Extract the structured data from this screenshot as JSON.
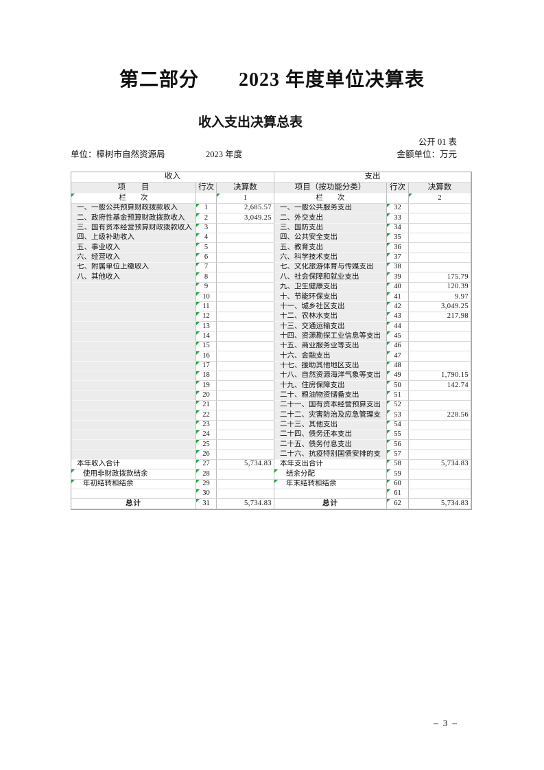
{
  "page": {
    "title": "第二部分　　2023 年度单位决算表",
    "subtitle": "收入支出决算总表",
    "table_code": "公开 01 表",
    "unit_label": "单位：樟树市自然资源局",
    "year_label": "2023 年度",
    "amount_unit_label": "金额单位：万元",
    "page_number": "– 3 –"
  },
  "colors": {
    "error_triangle_green": "#21a244",
    "shaded_cell_gray": "#ececec"
  },
  "table": {
    "income_title": "收入",
    "expense_title": "支出",
    "income_cols": {
      "item": "项　　目",
      "row_no": "行次",
      "amount": "决算数"
    },
    "expense_cols": {
      "item": "项目（按功能分类）",
      "row_no": "行次",
      "amount": "决算数"
    },
    "column_row_label": "栏　　次",
    "income_col_index": "1",
    "expense_col_index": "2",
    "rows": [
      {
        "li": "一、一般公共预算财政拨款收入",
        "ln": "1",
        "lv": "2,685.57",
        "ri": "一、一般公共服务支出",
        "rn": "32",
        "rv": ""
      },
      {
        "li": "二、政府性基金预算财政拨款收入",
        "ln": "2",
        "lv": "3,049.25",
        "ri": "二、外交支出",
        "rn": "33",
        "rv": ""
      },
      {
        "li": "三、国有资本经营预算财政拨款收入",
        "ln": "3",
        "lv": "",
        "ri": "三、国防支出",
        "rn": "34",
        "rv": ""
      },
      {
        "li": "四、上级补助收入",
        "ln": "4",
        "lv": "",
        "ri": "四、公共安全支出",
        "rn": "35",
        "rv": ""
      },
      {
        "li": "五、事业收入",
        "ln": "5",
        "lv": "",
        "ri": "五、教育支出",
        "rn": "36",
        "rv": ""
      },
      {
        "li": "六、经营收入",
        "ln": "6",
        "lv": "",
        "ri": "六、科学技术支出",
        "rn": "37",
        "rv": ""
      },
      {
        "li": "七、附属单位上缴收入",
        "ln": "7",
        "lv": "",
        "ri": "七、文化旅游体育与传媒支出",
        "rn": "38",
        "rv": ""
      },
      {
        "li": "八、其他收入",
        "ln": "8",
        "lv": "",
        "ri": "八、社会保障和就业支出",
        "rn": "39",
        "rv": "175.79"
      },
      {
        "li": "",
        "ln": "9",
        "lv": "",
        "ri": "九、卫生健康支出",
        "rn": "40",
        "rv": "120.39"
      },
      {
        "li": "",
        "ln": "10",
        "lv": "",
        "ri": "十、节能环保支出",
        "rn": "41",
        "rv": "9.97"
      },
      {
        "li": "",
        "ln": "11",
        "lv": "",
        "ri": "十一、城乡社区支出",
        "rn": "42",
        "rv": "3,049.25"
      },
      {
        "li": "",
        "ln": "12",
        "lv": "",
        "ri": "十二、农林水支出",
        "rn": "43",
        "rv": "217.98"
      },
      {
        "li": "",
        "ln": "13",
        "lv": "",
        "ri": "十三、交通运输支出",
        "rn": "44",
        "rv": ""
      },
      {
        "li": "",
        "ln": "14",
        "lv": "",
        "ri": "十四、资源勘探工业信息等支出",
        "rn": "45",
        "rv": ""
      },
      {
        "li": "",
        "ln": "15",
        "lv": "",
        "ri": "十五、商业服务业等支出",
        "rn": "46",
        "rv": ""
      },
      {
        "li": "",
        "ln": "16",
        "lv": "",
        "ri": "十六、金融支出",
        "rn": "47",
        "rv": ""
      },
      {
        "li": "",
        "ln": "17",
        "lv": "",
        "ri": "十七、援助其他地区支出",
        "rn": "48",
        "rv": ""
      },
      {
        "li": "",
        "ln": "18",
        "lv": "",
        "ri": "十八、自然资源海洋气象等支出",
        "rn": "49",
        "rv": "1,790.15"
      },
      {
        "li": "",
        "ln": "19",
        "lv": "",
        "ri": "十九、住房保障支出",
        "rn": "50",
        "rv": "142.74"
      },
      {
        "li": "",
        "ln": "20",
        "lv": "",
        "ri": "二十、粮油物资储备支出",
        "rn": "51",
        "rv": ""
      },
      {
        "li": "",
        "ln": "21",
        "lv": "",
        "ri": "二十一、国有资本经营预算支出",
        "rn": "52",
        "rv": ""
      },
      {
        "li": "",
        "ln": "22",
        "lv": "",
        "ri": "二十二、灾害防治及应急管理支",
        "rn": "53",
        "rv": "228.56"
      },
      {
        "li": "",
        "ln": "23",
        "lv": "",
        "ri": "二十三、其他支出",
        "rn": "54",
        "rv": ""
      },
      {
        "li": "",
        "ln": "24",
        "lv": "",
        "ri": "二十四、债务还本支出",
        "rn": "55",
        "rv": ""
      },
      {
        "li": "",
        "ln": "25",
        "lv": "",
        "ri": "二十五、债务付息支出",
        "rn": "56",
        "rv": ""
      },
      {
        "li": "",
        "ln": "26",
        "lv": "",
        "ri": "二十六、抗疫特别国债安排的支",
        "rn": "57",
        "rv": ""
      },
      {
        "li": "本年收入合计",
        "ln": "27",
        "lv": "5,734.83",
        "ri": "本年支出合计",
        "rn": "58",
        "rv": "5,734.83"
      },
      {
        "li": "使用非财政拨款结余",
        "ln": "28",
        "lv": "",
        "ri": "结余分配",
        "rn": "59",
        "rv": "",
        "indent_l": true,
        "flag_l": true,
        "indent_r": true,
        "flag_r": true
      },
      {
        "li": "年初结转和结余",
        "ln": "29",
        "lv": "",
        "ri": "年末结转和结余",
        "rn": "60",
        "rv": "",
        "indent_l": true,
        "flag_l": true,
        "indent_r": true,
        "flag_r": true
      },
      {
        "li": "",
        "ln": "30",
        "lv": "",
        "ri": "",
        "rn": "61",
        "rv": ""
      },
      {
        "li": "总计",
        "ln": "31",
        "lv": "5,734.83",
        "ri": "总计",
        "rn": "62",
        "rv": "5,734.83",
        "total": true
      }
    ]
  }
}
